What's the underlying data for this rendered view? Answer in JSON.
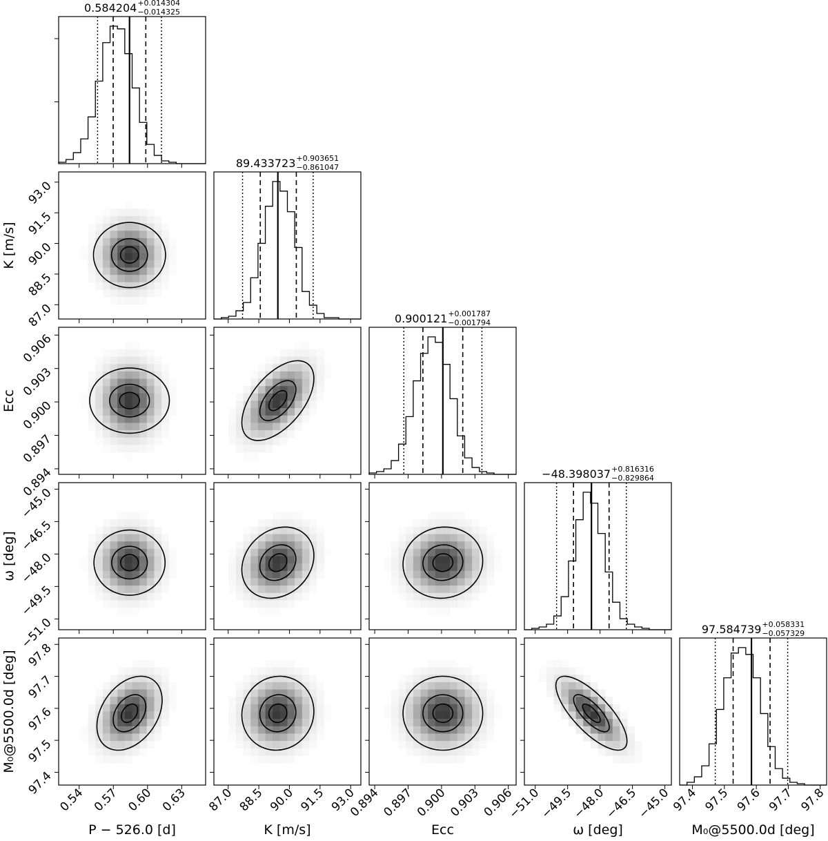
{
  "chart_data": {
    "type": "corner",
    "parameters": [
      {
        "label": "P − 526.0 [d]",
        "range": [
          0.522,
          0.651
        ],
        "ticks": [
          0.54,
          0.57,
          0.6,
          0.63
        ],
        "tick_labels": [
          "0.54",
          "0.57",
          "0.60",
          "0.63"
        ],
        "median": 0.584204,
        "err_plus": 0.014304,
        "err_minus": 0.014325,
        "title": {
          "value": "0.584204",
          "plus": "+0.014304",
          "minus": "−0.014325"
        },
        "histogram": [
          1,
          3,
          8,
          18,
          34,
          60,
          88,
          100,
          98,
          80,
          55,
          30,
          14,
          6,
          2,
          1,
          0,
          0,
          0,
          0
        ]
      },
      {
        "label": "K [m/s]",
        "range": [
          86.3,
          93.5
        ],
        "ticks": [
          87.0,
          88.5,
          90.0,
          91.5,
          93.0
        ],
        "tick_labels": [
          "87.0",
          "88.5",
          "90.0",
          "91.5",
          "93.0"
        ],
        "median": 89.433723,
        "err_plus": 0.903651,
        "err_minus": 0.861047,
        "title": {
          "value": "89.433723",
          "plus": "+0.903651",
          "minus": "−0.861047"
        },
        "histogram": [
          0,
          1,
          2,
          6,
          12,
          30,
          55,
          82,
          100,
          93,
          78,
          52,
          20,
          10,
          4,
          1,
          1,
          0,
          0,
          0
        ]
      },
      {
        "label": "Ecc",
        "range": [
          0.8935,
          0.9067
        ],
        "ticks": [
          0.894,
          0.897,
          0.9,
          0.903,
          0.906
        ],
        "tick_labels": [
          "0.894",
          "0.897",
          "0.900",
          "0.903",
          "0.906"
        ],
        "median": 0.900121,
        "err_plus": 0.001787,
        "err_minus": 0.001794,
        "title": {
          "value": "0.900121",
          "plus": "+0.001787",
          "minus": "−0.001794"
        },
        "histogram": [
          1,
          2,
          4,
          10,
          22,
          42,
          68,
          88,
          100,
          96,
          80,
          55,
          28,
          12,
          5,
          2,
          1,
          0,
          0,
          0
        ]
      },
      {
        "label": "ω [deg]",
        "range": [
          -51.5,
          -44.7
        ],
        "ticks": [
          -51.0,
          -49.5,
          -48.0,
          -46.5,
          -45.0
        ],
        "tick_labels": [
          "−51.0",
          "−49.5",
          "−48.0",
          "−46.5",
          "−45.0"
        ],
        "median": -48.398037,
        "err_plus": 0.816316,
        "err_minus": 0.829864,
        "title": {
          "value": "−48.398037",
          "plus": "+0.816316",
          "minus": "−0.829864"
        },
        "histogram": [
          0,
          1,
          2,
          4,
          10,
          24,
          50,
          80,
          100,
          92,
          70,
          42,
          20,
          8,
          4,
          2,
          1,
          0,
          0,
          0
        ]
      },
      {
        "label": "M₀@5500.0d [deg]",
        "range": [
          97.36,
          97.82
        ],
        "ticks": [
          97.4,
          97.5,
          97.6,
          97.7,
          97.8
        ],
        "tick_labels": [
          "97.4",
          "97.5",
          "97.6",
          "97.7",
          "97.8"
        ],
        "median": 97.584739,
        "err_plus": 0.058331,
        "err_minus": 0.057329,
        "title": {
          "value": "97.584739",
          "plus": "+0.058331",
          "minus": "−0.057329"
        },
        "histogram": [
          0,
          2,
          6,
          14,
          30,
          55,
          78,
          96,
          100,
          95,
          78,
          52,
          28,
          12,
          5,
          2,
          1,
          0,
          0,
          0
        ]
      }
    ],
    "correlations": {
      "1-0": 0.0,
      "2-0": 0.0,
      "2-1": 0.55,
      "3-0": 0.0,
      "3-1": 0.2,
      "3-2": 0.05,
      "4-0": 0.35,
      "4-1": 0.05,
      "4-2": 0.0,
      "4-3": -0.75
    },
    "quantile_lines": [
      "median (solid)",
      "±1σ (dashed)",
      "±2σ (dotted)"
    ],
    "contour_levels_sigma": [
      0.5,
      1.0,
      2.0
    ]
  }
}
